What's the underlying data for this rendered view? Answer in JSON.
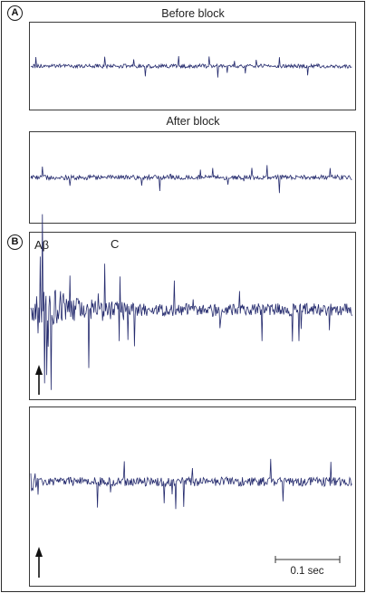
{
  "figure": {
    "section_a": {
      "badge": "A",
      "trace1_title": "Before block",
      "trace2_title": "After block"
    },
    "section_b": {
      "badge": "B",
      "label_abeta": "Aβ",
      "label_c": "C"
    },
    "scale_bar": {
      "label": "0.1 sec"
    },
    "trace_color": "#252b6e"
  }
}
